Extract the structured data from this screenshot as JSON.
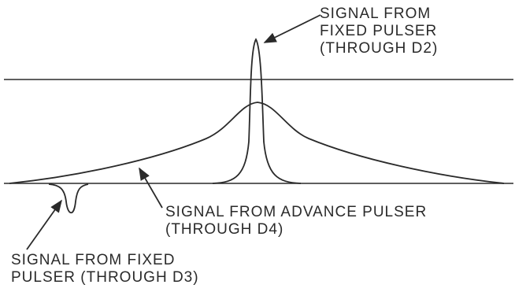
{
  "labels": {
    "fixed_pulser_d2": {
      "line1": "SIGNAL FROM",
      "line2": "FIXED PULSER",
      "line3": "(THROUGH D2)"
    },
    "advance_pulser_d4": {
      "line1": "SIGNAL FROM ADVANCE PULSER",
      "line2": "(THROUGH D4)"
    },
    "fixed_pulser_d3": {
      "line1": "SIGNAL FROM FIXED",
      "line2": "PULSER (THROUGH D3)"
    }
  },
  "colors": {
    "ink": "#2a2a2a",
    "background": "#ffffff"
  }
}
